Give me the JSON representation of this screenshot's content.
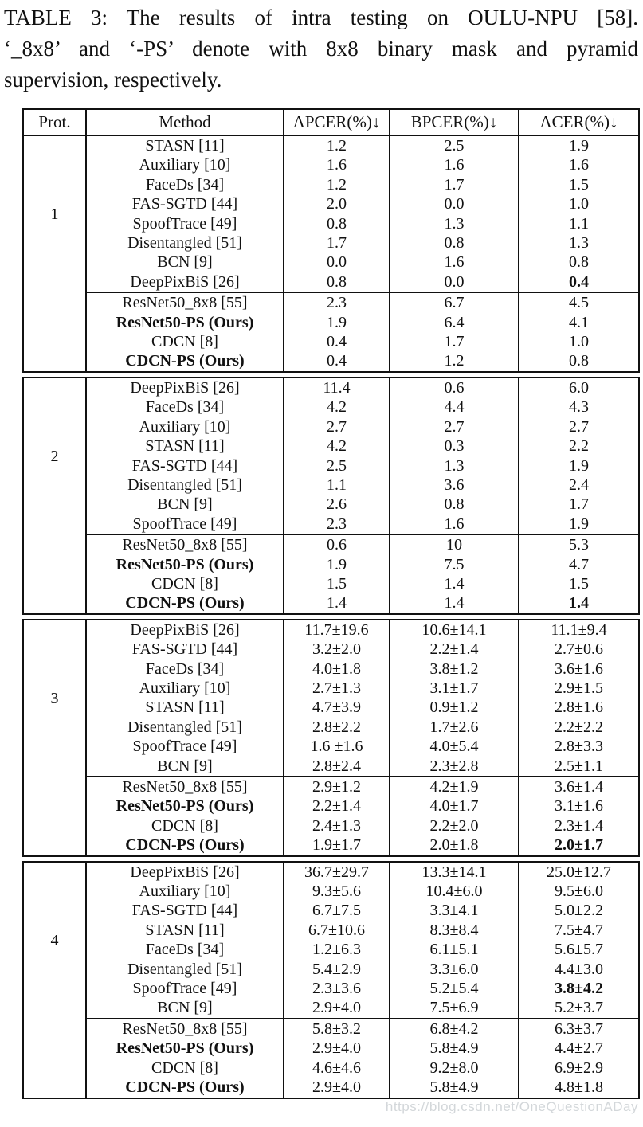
{
  "caption": {
    "lines": [
      "TABLE 3: The results of intra testing on OULU-NPU [58].",
      "‘_8x8’ and ‘-PS’ denote with 8x8 binary mask and pyramid",
      "supervision, respectively."
    ]
  },
  "watermark": "https://blog.csdn.net/OneQuestionADay",
  "colors": {
    "text": "#111111",
    "border": "#111111",
    "background": "#ffffff",
    "watermark": "#d3d7da"
  },
  "table": {
    "headers": [
      "Prot.",
      "Method",
      "APCER(%)↓",
      "BPCER(%)↓",
      "ACER(%)↓"
    ],
    "blocks": [
      {
        "protocol": "1",
        "published": [
          {
            "method": "STASN [11]",
            "apcer": "1.2",
            "bpcer": "2.5",
            "acer": "1.9"
          },
          {
            "method": "Auxiliary [10]",
            "apcer": "1.6",
            "bpcer": "1.6",
            "acer": "1.6"
          },
          {
            "method": "FaceDs [34]",
            "apcer": "1.2",
            "bpcer": "1.7",
            "acer": "1.5"
          },
          {
            "method": "FAS-SGTD [44]",
            "apcer": "2.0",
            "bpcer": "0.0",
            "acer": "1.0"
          },
          {
            "method": "SpoofTrace [49]",
            "apcer": "0.8",
            "bpcer": "1.3",
            "acer": "1.1"
          },
          {
            "method": "Disentangled [51]",
            "apcer": "1.7",
            "bpcer": "0.8",
            "acer": "1.3"
          },
          {
            "method": "BCN [9]",
            "apcer": "0.0",
            "bpcer": "1.6",
            "acer": "0.8"
          },
          {
            "method": "DeepPixBiS [26]",
            "apcer": "0.8",
            "bpcer": "0.0",
            "acer": "0.4",
            "bold_acer": true
          }
        ],
        "ours": [
          {
            "method": "ResNet50_8x8 [55]",
            "apcer": "2.3",
            "bpcer": "6.7",
            "acer": "4.5"
          },
          {
            "method": "ResNet50-PS (Ours)",
            "apcer": "1.9",
            "bpcer": "6.4",
            "acer": "4.1",
            "bold_method": true
          },
          {
            "method": "CDCN [8]",
            "apcer": "0.4",
            "bpcer": "1.7",
            "acer": "1.0"
          },
          {
            "method": "CDCN-PS (Ours)",
            "apcer": "0.4",
            "bpcer": "1.2",
            "acer": "0.8",
            "bold_method": true
          }
        ]
      },
      {
        "protocol": "2",
        "published": [
          {
            "method": "DeepPixBiS [26]",
            "apcer": "11.4",
            "bpcer": "0.6",
            "acer": "6.0"
          },
          {
            "method": "FaceDs [34]",
            "apcer": "4.2",
            "bpcer": "4.4",
            "acer": "4.3"
          },
          {
            "method": "Auxiliary [10]",
            "apcer": "2.7",
            "bpcer": "2.7",
            "acer": "2.7"
          },
          {
            "method": "STASN [11]",
            "apcer": "4.2",
            "bpcer": "0.3",
            "acer": "2.2"
          },
          {
            "method": "FAS-SGTD [44]",
            "apcer": "2.5",
            "bpcer": "1.3",
            "acer": "1.9"
          },
          {
            "method": "Disentangled [51]",
            "apcer": "1.1",
            "bpcer": "3.6",
            "acer": "2.4"
          },
          {
            "method": "BCN [9]",
            "apcer": "2.6",
            "bpcer": "0.8",
            "acer": "1.7"
          },
          {
            "method": "SpoofTrace [49]",
            "apcer": "2.3",
            "bpcer": "1.6",
            "acer": "1.9"
          }
        ],
        "ours": [
          {
            "method": "ResNet50_8x8 [55]",
            "apcer": "0.6",
            "bpcer": "10",
            "acer": "5.3"
          },
          {
            "method": "ResNet50-PS (Ours)",
            "apcer": "1.9",
            "bpcer": "7.5",
            "acer": "4.7",
            "bold_method": true
          },
          {
            "method": "CDCN [8]",
            "apcer": "1.5",
            "bpcer": "1.4",
            "acer": "1.5"
          },
          {
            "method": "CDCN-PS (Ours)",
            "apcer": "1.4",
            "bpcer": "1.4",
            "acer": "1.4",
            "bold_method": true,
            "bold_acer": true
          }
        ]
      },
      {
        "protocol": "3",
        "published": [
          {
            "method": "DeepPixBiS [26]",
            "apcer": "11.7±19.6",
            "bpcer": "10.6±14.1",
            "acer": "11.1±9.4"
          },
          {
            "method": "FAS-SGTD [44]",
            "apcer": "3.2±2.0",
            "bpcer": "2.2±1.4",
            "acer": "2.7±0.6"
          },
          {
            "method": "FaceDs [34]",
            "apcer": "4.0±1.8",
            "bpcer": "3.8±1.2",
            "acer": "3.6±1.6"
          },
          {
            "method": "Auxiliary [10]",
            "apcer": "2.7±1.3",
            "bpcer": "3.1±1.7",
            "acer": "2.9±1.5"
          },
          {
            "method": "STASN [11]",
            "apcer": "4.7±3.9",
            "bpcer": "0.9±1.2",
            "acer": "2.8±1.6"
          },
          {
            "method": "Disentangled [51]",
            "apcer": "2.8±2.2",
            "bpcer": "1.7±2.6",
            "acer": "2.2±2.2"
          },
          {
            "method": "SpoofTrace [49]",
            "apcer": "1.6 ±1.6",
            "bpcer": "4.0±5.4",
            "acer": "2.8±3.3"
          },
          {
            "method": "BCN [9]",
            "apcer": "2.8±2.4",
            "bpcer": "2.3±2.8",
            "acer": "2.5±1.1"
          }
        ],
        "ours": [
          {
            "method": "ResNet50_8x8 [55]",
            "apcer": "2.9±1.2",
            "bpcer": "4.2±1.9",
            "acer": "3.6±1.4"
          },
          {
            "method": "ResNet50-PS (Ours)",
            "apcer": "2.2±1.4",
            "bpcer": "4.0±1.7",
            "acer": "3.1±1.6",
            "bold_method": true
          },
          {
            "method": "CDCN [8]",
            "apcer": "2.4±1.3",
            "bpcer": "2.2±2.0",
            "acer": "2.3±1.4"
          },
          {
            "method": "CDCN-PS (Ours)",
            "apcer": "1.9±1.7",
            "bpcer": "2.0±1.8",
            "acer": "2.0±1.7",
            "bold_method": true,
            "bold_acer": true
          }
        ]
      },
      {
        "protocol": "4",
        "published": [
          {
            "method": "DeepPixBiS [26]",
            "apcer": "36.7±29.7",
            "bpcer": "13.3±14.1",
            "acer": "25.0±12.7"
          },
          {
            "method": "Auxiliary [10]",
            "apcer": "9.3±5.6",
            "bpcer": "10.4±6.0",
            "acer": "9.5±6.0"
          },
          {
            "method": "FAS-SGTD [44]",
            "apcer": "6.7±7.5",
            "bpcer": "3.3±4.1",
            "acer": "5.0±2.2"
          },
          {
            "method": "STASN [11]",
            "apcer": "6.7±10.6",
            "bpcer": "8.3±8.4",
            "acer": "7.5±4.7"
          },
          {
            "method": "FaceDs [34]",
            "apcer": "1.2±6.3",
            "bpcer": "6.1±5.1",
            "acer": "5.6±5.7"
          },
          {
            "method": "Disentangled [51]",
            "apcer": "5.4±2.9",
            "bpcer": "3.3±6.0",
            "acer": "4.4±3.0"
          },
          {
            "method": "SpoofTrace [49]",
            "apcer": "2.3±3.6",
            "bpcer": "5.2±5.4",
            "acer": "3.8±4.2",
            "bold_acer": true
          },
          {
            "method": "BCN [9]",
            "apcer": "2.9±4.0",
            "bpcer": "7.5±6.9",
            "acer": "5.2±3.7"
          }
        ],
        "ours": [
          {
            "method": "ResNet50_8x8 [55]",
            "apcer": "5.8±3.2",
            "bpcer": "6.8±4.2",
            "acer": "6.3±3.7"
          },
          {
            "method": "ResNet50-PS (Ours)",
            "apcer": "2.9±4.0",
            "bpcer": "5.8±4.9",
            "acer": "4.4±2.7",
            "bold_method": true
          },
          {
            "method": "CDCN [8]",
            "apcer": "4.6±4.6",
            "bpcer": "9.2±8.0",
            "acer": "6.9±2.9"
          },
          {
            "method": "CDCN-PS (Ours)",
            "apcer": "2.9±4.0",
            "bpcer": "5.8±4.9",
            "acer": "4.8±1.8",
            "bold_method": true
          }
        ]
      }
    ]
  }
}
